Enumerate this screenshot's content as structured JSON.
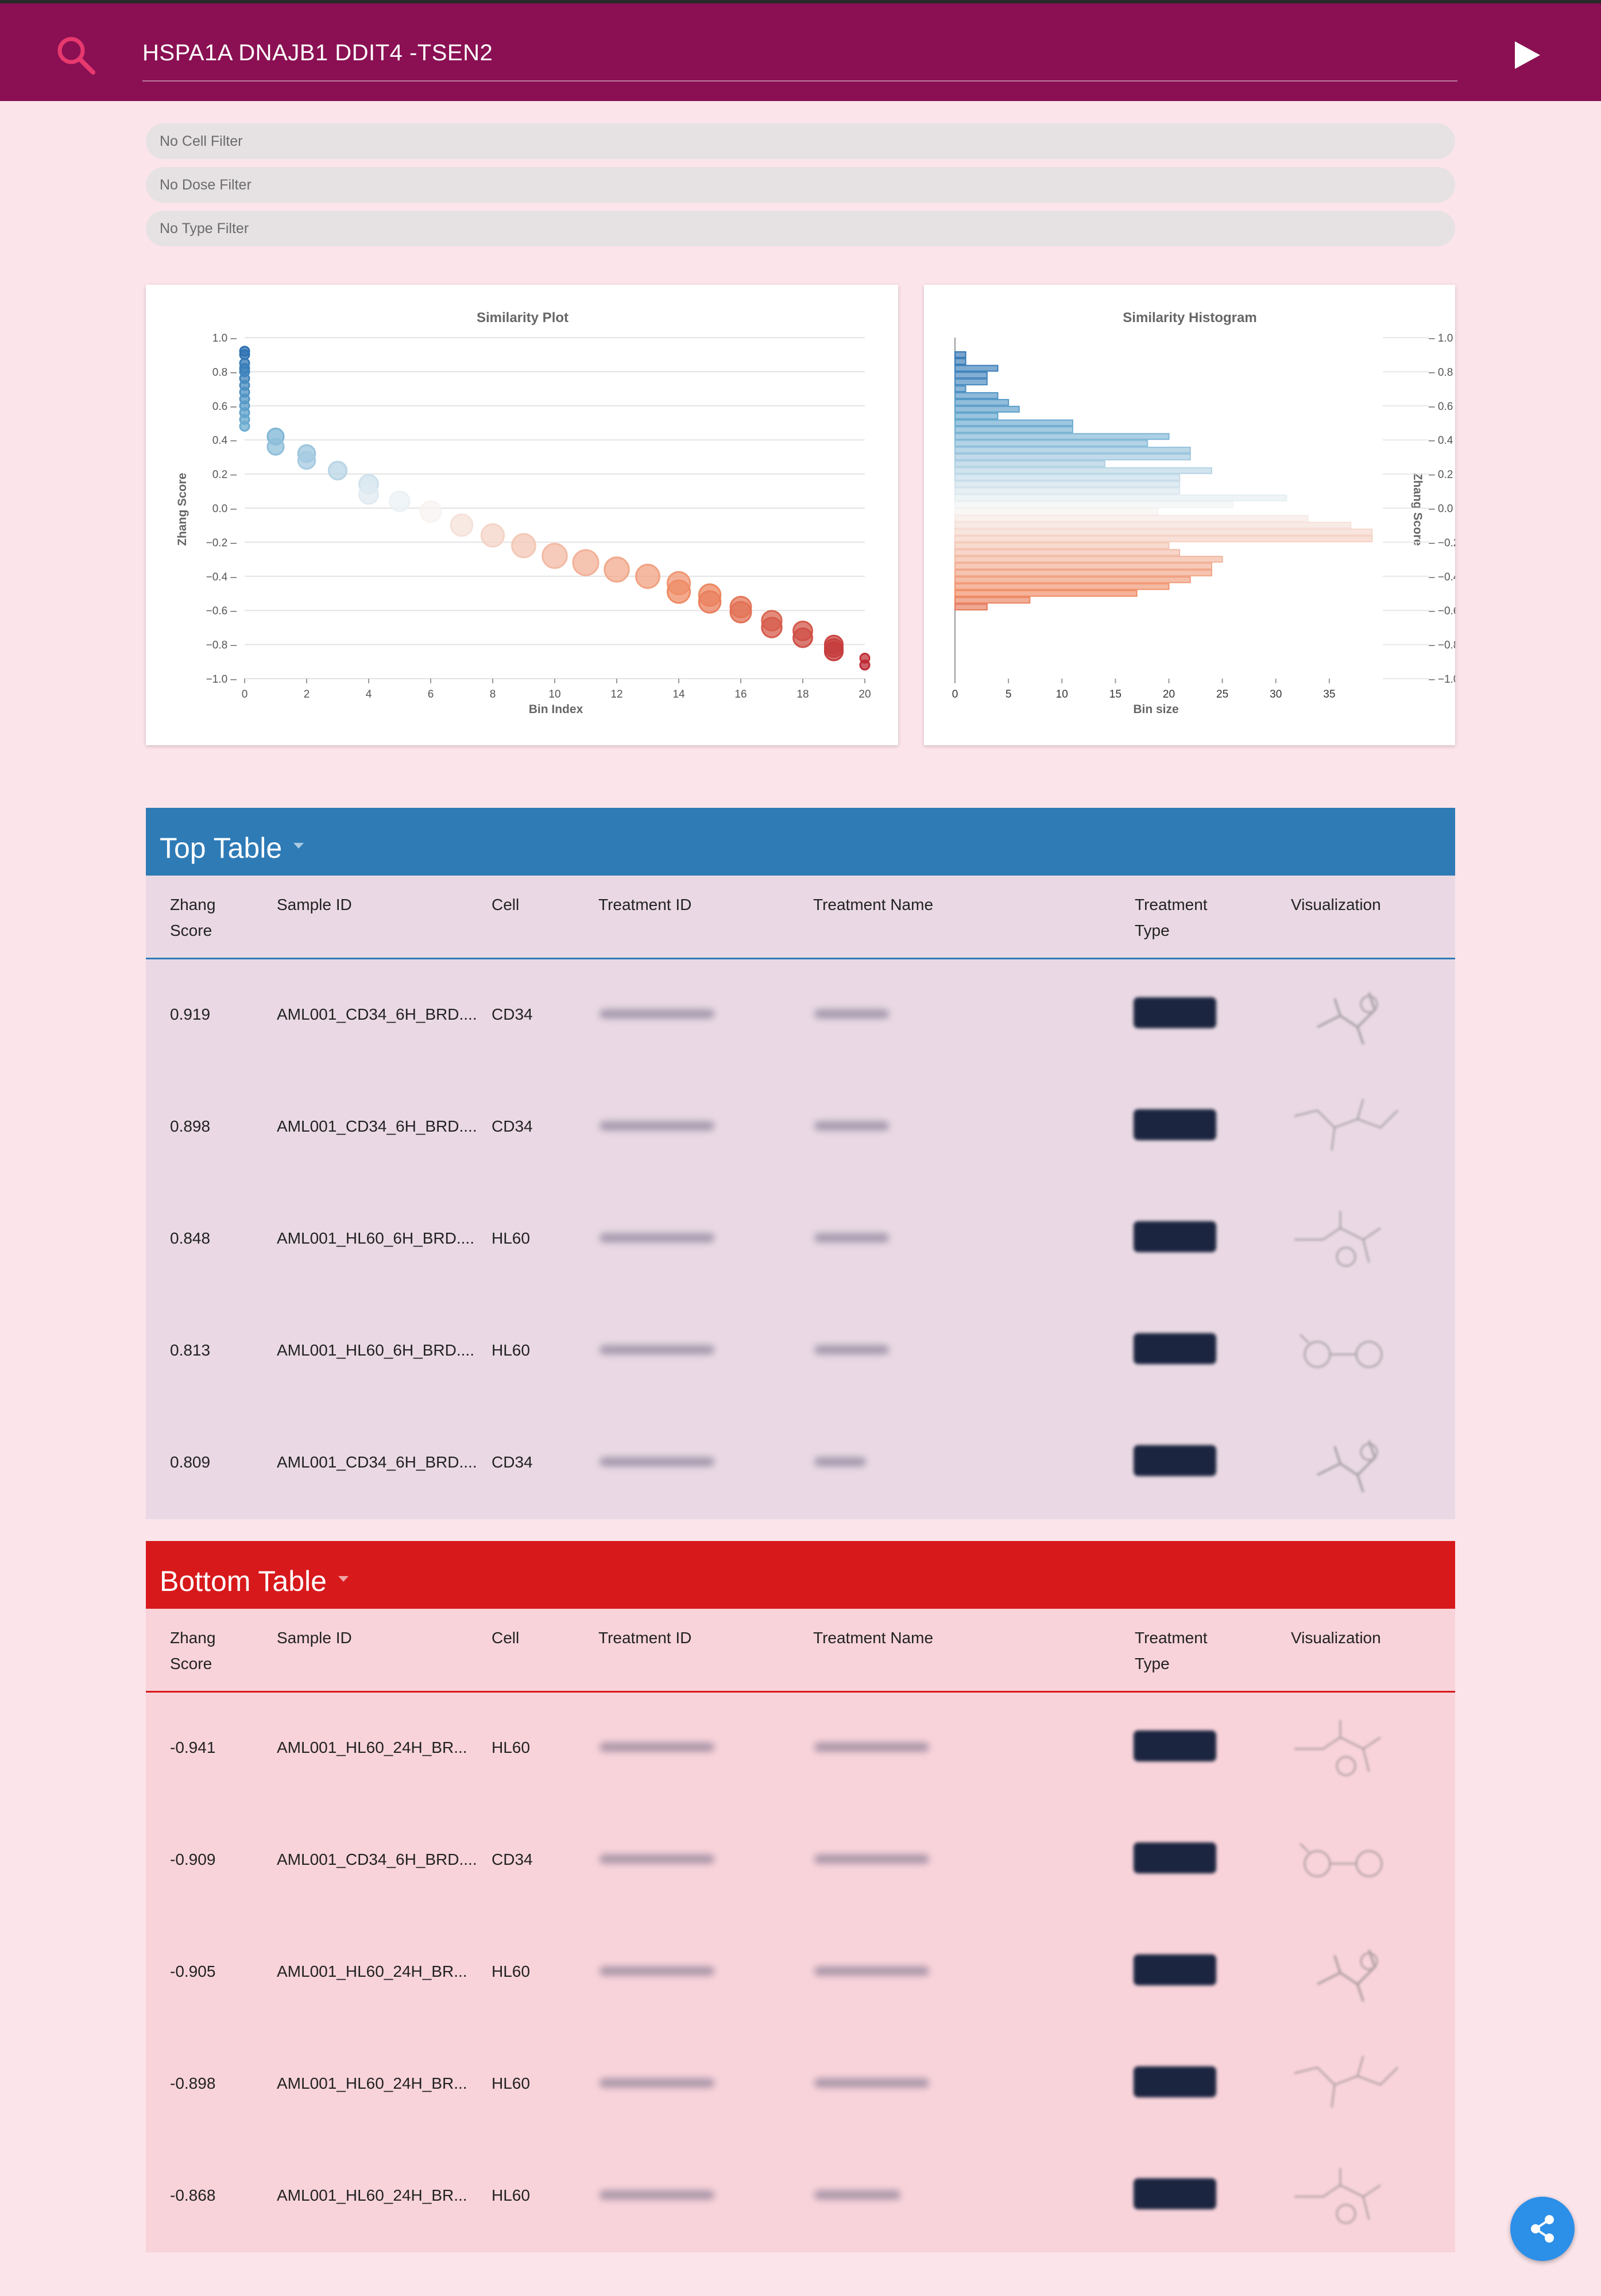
{
  "header": {
    "query": "HSPA1A DNAJB1 DDIT4 -TSEN2",
    "search_icon": "search-icon",
    "run_icon": "play-icon"
  },
  "filters": {
    "cell": "No Cell Filter",
    "dose": "No Dose Filter",
    "type": "No Type Filter"
  },
  "scatter": {
    "title": "Similarity Plot",
    "xlabel": "Bin Index",
    "ylabel": "Zhang Score"
  },
  "histogram": {
    "title": "Similarity Histogram",
    "xlabel": "Bin size",
    "ylabel": "Zhang Score"
  },
  "chart_data": [
    {
      "type": "scatter",
      "title": "Similarity Plot",
      "xlabel": "Bin Index",
      "ylabel": "Zhang Score",
      "xlim": [
        0,
        20
      ],
      "ylim": [
        -1.0,
        1.0
      ],
      "xticks": [
        0,
        2,
        4,
        6,
        8,
        10,
        12,
        14,
        16,
        18,
        20
      ],
      "yticks": [
        1.0,
        0.8,
        0.6,
        0.4,
        0.2,
        0.0,
        -0.2,
        -0.4,
        -0.6,
        -0.8,
        -1.0
      ],
      "grid": true,
      "points": [
        {
          "x": 0,
          "y": 0.92
        },
        {
          "x": 0,
          "y": 0.9
        },
        {
          "x": 0,
          "y": 0.85
        },
        {
          "x": 0,
          "y": 0.82
        },
        {
          "x": 0,
          "y": 0.8
        },
        {
          "x": 0,
          "y": 0.76
        },
        {
          "x": 0,
          "y": 0.72
        },
        {
          "x": 0,
          "y": 0.68
        },
        {
          "x": 0,
          "y": 0.64
        },
        {
          "x": 0,
          "y": 0.6
        },
        {
          "x": 0,
          "y": 0.56
        },
        {
          "x": 0,
          "y": 0.52
        },
        {
          "x": 0,
          "y": 0.48
        },
        {
          "x": 1,
          "y": 0.42
        },
        {
          "x": 1,
          "y": 0.36
        },
        {
          "x": 2,
          "y": 0.32
        },
        {
          "x": 2,
          "y": 0.28
        },
        {
          "x": 3,
          "y": 0.22
        },
        {
          "x": 4,
          "y": 0.14
        },
        {
          "x": 4,
          "y": 0.08
        },
        {
          "x": 5,
          "y": 0.04
        },
        {
          "x": 6,
          "y": -0.02
        },
        {
          "x": 7,
          "y": -0.1
        },
        {
          "x": 8,
          "y": -0.16
        },
        {
          "x": 9,
          "y": -0.22
        },
        {
          "x": 10,
          "y": -0.28
        },
        {
          "x": 11,
          "y": -0.32
        },
        {
          "x": 12,
          "y": -0.36
        },
        {
          "x": 13,
          "y": -0.4
        },
        {
          "x": 14,
          "y": -0.44
        },
        {
          "x": 14,
          "y": -0.49
        },
        {
          "x": 15,
          "y": -0.51
        },
        {
          "x": 15,
          "y": -0.55
        },
        {
          "x": 16,
          "y": -0.58
        },
        {
          "x": 16,
          "y": -0.61
        },
        {
          "x": 17,
          "y": -0.66
        },
        {
          "x": 17,
          "y": -0.7
        },
        {
          "x": 18,
          "y": -0.72
        },
        {
          "x": 18,
          "y": -0.76
        },
        {
          "x": 19,
          "y": -0.8
        },
        {
          "x": 19,
          "y": -0.82
        },
        {
          "x": 19,
          "y": -0.84
        },
        {
          "x": 20,
          "y": -0.88
        },
        {
          "x": 20,
          "y": -0.92
        }
      ]
    },
    {
      "type": "bar",
      "orientation": "horizontal",
      "title": "Similarity Histogram",
      "xlabel": "Bin size",
      "ylabel": "Zhang Score",
      "xlim": [
        0,
        40
      ],
      "ylim": [
        -1.0,
        1.0
      ],
      "xticks": [
        0,
        5,
        10,
        15,
        20,
        25,
        30,
        35
      ],
      "yticks": [
        1.0,
        0.8,
        0.6,
        0.4,
        0.2,
        0.0,
        -0.2,
        -0.4,
        -0.6,
        -0.8,
        -1.0
      ],
      "bin_width": 0.04,
      "bins": [
        {
          "y": 0.9,
          "value": 1
        },
        {
          "y": 0.86,
          "value": 1
        },
        {
          "y": 0.82,
          "value": 4
        },
        {
          "y": 0.78,
          "value": 3
        },
        {
          "y": 0.74,
          "value": 3
        },
        {
          "y": 0.7,
          "value": 1
        },
        {
          "y": 0.66,
          "value": 4
        },
        {
          "y": 0.62,
          "value": 5
        },
        {
          "y": 0.58,
          "value": 6
        },
        {
          "y": 0.54,
          "value": 4
        },
        {
          "y": 0.5,
          "value": 11
        },
        {
          "y": 0.46,
          "value": 11
        },
        {
          "y": 0.42,
          "value": 20
        },
        {
          "y": 0.38,
          "value": 18
        },
        {
          "y": 0.34,
          "value": 22
        },
        {
          "y": 0.3,
          "value": 22
        },
        {
          "y": 0.26,
          "value": 14
        },
        {
          "y": 0.22,
          "value": 24
        },
        {
          "y": 0.18,
          "value": 21
        },
        {
          "y": 0.14,
          "value": 21
        },
        {
          "y": 0.1,
          "value": 21
        },
        {
          "y": 0.06,
          "value": 31
        },
        {
          "y": 0.02,
          "value": 26
        },
        {
          "y": -0.02,
          "value": 19
        },
        {
          "y": -0.06,
          "value": 33
        },
        {
          "y": -0.1,
          "value": 37
        },
        {
          "y": -0.14,
          "value": 39
        },
        {
          "y": -0.18,
          "value": 39
        },
        {
          "y": -0.22,
          "value": 20
        },
        {
          "y": -0.26,
          "value": 21
        },
        {
          "y": -0.3,
          "value": 25
        },
        {
          "y": -0.34,
          "value": 24
        },
        {
          "y": -0.38,
          "value": 24
        },
        {
          "y": -0.42,
          "value": 22
        },
        {
          "y": -0.46,
          "value": 20
        },
        {
          "y": -0.5,
          "value": 17
        },
        {
          "y": -0.54,
          "value": 7
        },
        {
          "y": -0.58,
          "value": 3
        }
      ]
    }
  ],
  "top_table": {
    "title": "Top Table",
    "color": "#2e7bb6",
    "columns": [
      "Zhang Score",
      "Sample ID",
      "Cell",
      "Treatment ID",
      "Treatment Name",
      "Treatment Type",
      "Visualization"
    ],
    "rows": [
      {
        "score": "0.919",
        "sample": "AML001_CD34_6H_BRD....",
        "cell": "CD34"
      },
      {
        "score": "0.898",
        "sample": "AML001_CD34_6H_BRD....",
        "cell": "CD34"
      },
      {
        "score": "0.848",
        "sample": "AML001_HL60_6H_BRD....",
        "cell": "HL60"
      },
      {
        "score": "0.813",
        "sample": "AML001_HL60_6H_BRD....",
        "cell": "HL60"
      },
      {
        "score": "0.809",
        "sample": "AML001_CD34_6H_BRD....",
        "cell": "CD34"
      }
    ]
  },
  "bottom_table": {
    "title": "Bottom Table",
    "color": "#d7191c",
    "columns": [
      "Zhang Score",
      "Sample ID",
      "Cell",
      "Treatment ID",
      "Treatment Name",
      "Treatment Type",
      "Visualization"
    ],
    "rows": [
      {
        "score": "-0.941",
        "sample": "AML001_HL60_24H_BR...",
        "cell": "HL60"
      },
      {
        "score": "-0.909",
        "sample": "AML001_CD34_6H_BRD....",
        "cell": "CD34"
      },
      {
        "score": "-0.905",
        "sample": "AML001_HL60_24H_BR...",
        "cell": "HL60"
      },
      {
        "score": "-0.898",
        "sample": "AML001_HL60_24H_BR...",
        "cell": "HL60"
      },
      {
        "score": "-0.868",
        "sample": "AML001_HL60_24H_BR...",
        "cell": "HL60"
      }
    ]
  },
  "fab": {
    "icon": "share-icon"
  }
}
